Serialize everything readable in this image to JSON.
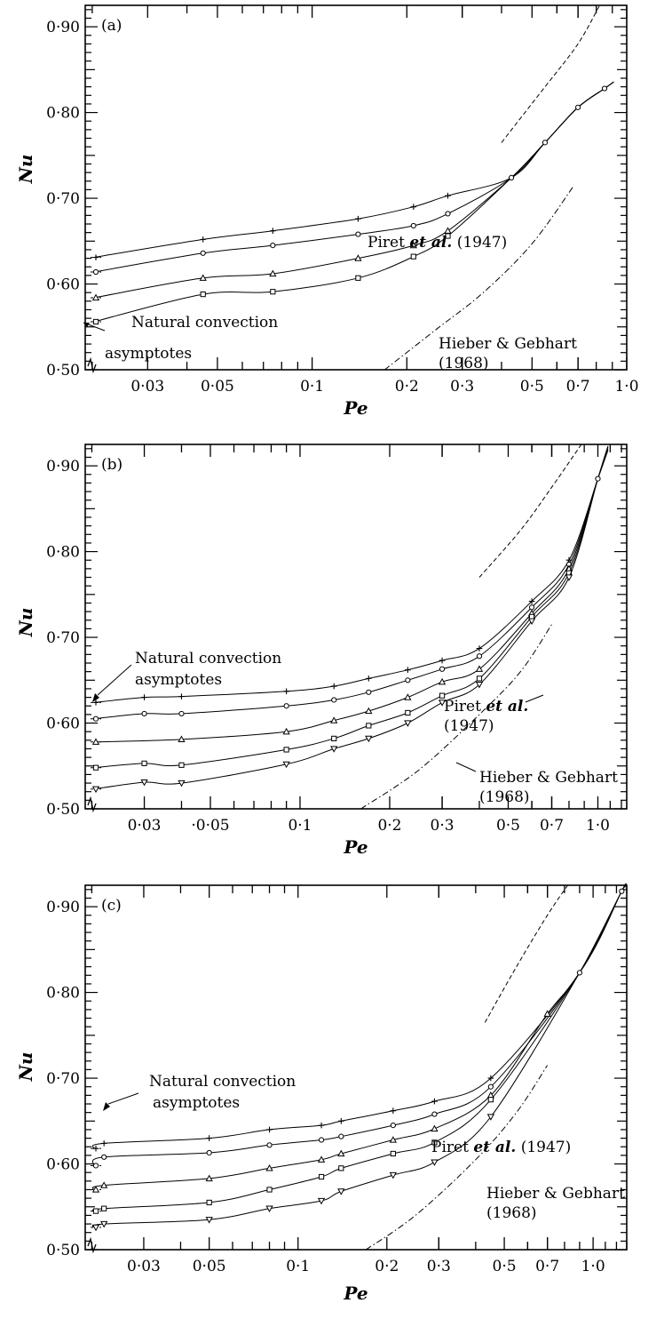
{
  "chart_data": [
    {
      "type": "line",
      "panel_label": "(a)",
      "xlabel": "Pe",
      "ylabel": "Nu",
      "x_scale": "log",
      "xlim": [
        0.019,
        1.0
      ],
      "ylim": [
        0.5,
        0.925
      ],
      "x_ticks": [
        0.03,
        0.05,
        0.1,
        0.2,
        0.3,
        0.5,
        0.7,
        1.0
      ],
      "x_tick_labels": [
        "0·03",
        "0·05",
        "0·1",
        "0·2",
        "0·3",
        "0·5",
        "0·7",
        "1·0"
      ],
      "y_ticks": [
        0.5,
        0.6,
        0.7,
        0.8,
        0.9
      ],
      "y_tick_labels": [
        "0·50",
        "0·60",
        "0·70",
        "0·80",
        "0·90"
      ],
      "asymptotes": [
        0.631,
        0.614,
        0.584,
        0.556
      ],
      "series": [
        {
          "marker": "plus",
          "x": [
            0.045,
            0.075,
            0.14,
            0.21,
            0.27
          ],
          "y": [
            0.652,
            0.662,
            0.676,
            0.69,
            0.703
          ]
        },
        {
          "marker": "circle",
          "x": [
            0.045,
            0.075,
            0.14,
            0.21,
            0.27
          ],
          "y": [
            0.636,
            0.645,
            0.658,
            0.668,
            0.682
          ]
        },
        {
          "marker": "triangle",
          "x": [
            0.045,
            0.075,
            0.14,
            0.21,
            0.27
          ],
          "y": [
            0.607,
            0.612,
            0.63,
            0.645,
            0.662
          ]
        },
        {
          "marker": "square",
          "x": [
            0.045,
            0.075,
            0.14,
            0.21,
            0.27
          ],
          "y": [
            0.588,
            0.591,
            0.607,
            0.632,
            0.656
          ]
        }
      ],
      "combined": {
        "marker": "circle",
        "x": [
          0.43,
          0.55,
          0.7,
          0.85
        ],
        "y": [
          0.724,
          0.765,
          0.806,
          0.828
        ]
      },
      "piret": {
        "x": [
          0.4,
          0.55,
          0.7,
          0.82
        ],
        "y": [
          0.765,
          0.83,
          0.88,
          0.925
        ]
      },
      "hieber": {
        "x": [
          0.17,
          0.25,
          0.35,
          0.5,
          0.68
        ],
        "y": [
          0.5,
          0.548,
          0.59,
          0.647,
          0.715
        ]
      },
      "annotations": [
        {
          "text": "Natural convection",
          "sub": "asymptotes"
        },
        {
          "text_prefix": "Piret ",
          "text_italic": "et al.",
          "text_suffix": " (1947)"
        },
        {
          "text": "Hieber & Gebhart",
          "sub": "(1968)"
        }
      ]
    },
    {
      "type": "line",
      "panel_label": "(b)",
      "xlabel": "Pe",
      "ylabel": "Nu",
      "x_scale": "log",
      "xlim": [
        0.019,
        1.25
      ],
      "ylim": [
        0.5,
        0.925
      ],
      "x_ticks": [
        0.03,
        0.05,
        0.1,
        0.2,
        0.3,
        0.5,
        0.7,
        1.0
      ],
      "x_tick_labels": [
        "0·03",
        "·0·05",
        "0·1",
        "0·2",
        "0·3",
        "0·5",
        "0·7",
        "1·0"
      ],
      "y_ticks": [
        0.5,
        0.6,
        0.7,
        0.8,
        0.9
      ],
      "y_tick_labels": [
        "0·50",
        "0·60",
        "0·70",
        "0·80",
        "0·90"
      ],
      "asymptotes": [
        0.624,
        0.605,
        0.578,
        0.548,
        0.523
      ],
      "series": [
        {
          "marker": "plus",
          "x": [
            0.03,
            0.04,
            0.09,
            0.13,
            0.17,
            0.23,
            0.3,
            0.4,
            0.6,
            0.8
          ],
          "y": [
            0.63,
            0.631,
            0.637,
            0.643,
            0.652,
            0.662,
            0.673,
            0.687,
            0.742,
            0.79
          ]
        },
        {
          "marker": "circle",
          "x": [
            0.03,
            0.04,
            0.09,
            0.13,
            0.17,
            0.23,
            0.3,
            0.4,
            0.6,
            0.8
          ],
          "y": [
            0.611,
            0.611,
            0.62,
            0.627,
            0.636,
            0.65,
            0.663,
            0.678,
            0.735,
            0.785
          ]
        },
        {
          "marker": "triangle",
          "x": [
            0.04,
            0.09,
            0.13,
            0.17,
            0.23,
            0.3,
            0.4,
            0.6,
            0.8
          ],
          "y": [
            0.581,
            0.59,
            0.603,
            0.614,
            0.63,
            0.648,
            0.663,
            0.728,
            0.78
          ]
        },
        {
          "marker": "square",
          "x": [
            0.03,
            0.04,
            0.09,
            0.13,
            0.17,
            0.23,
            0.3,
            0.4,
            0.6,
            0.8
          ],
          "y": [
            0.553,
            0.551,
            0.569,
            0.582,
            0.597,
            0.612,
            0.632,
            0.652,
            0.724,
            0.775
          ]
        },
        {
          "marker": "triangle-down",
          "x": [
            0.03,
            0.04,
            0.09,
            0.13,
            0.17,
            0.23,
            0.3,
            0.4,
            0.6,
            0.8
          ],
          "y": [
            0.531,
            0.53,
            0.552,
            0.57,
            0.582,
            0.6,
            0.624,
            0.645,
            0.719,
            0.77
          ]
        }
      ],
      "combined": {
        "marker": "circle",
        "x": [
          1.0
        ],
        "y": [
          0.885
        ]
      },
      "piret": {
        "x": [
          0.4,
          0.55,
          0.7,
          0.88
        ],
        "y": [
          0.77,
          0.825,
          0.875,
          0.925
        ]
      },
      "hieber": {
        "x": [
          0.16,
          0.25,
          0.4,
          0.55,
          0.7
        ],
        "y": [
          0.5,
          0.545,
          0.61,
          0.66,
          0.715
        ]
      },
      "annotations": [
        {
          "text": "Natural convection",
          "sub": "asymptotes"
        },
        {
          "text_prefix": "Piret ",
          "text_italic": "et al.",
          "text_suffix": "",
          "sub": "(1947)"
        },
        {
          "text": "Hieber & Gebhart",
          "sub": "(1968)"
        }
      ]
    },
    {
      "type": "line",
      "panel_label": "(c)",
      "xlabel": "Pe",
      "ylabel": "Nu",
      "x_scale": "log",
      "xlim": [
        0.019,
        1.3
      ],
      "ylim": [
        0.5,
        0.925
      ],
      "x_ticks": [
        0.03,
        0.05,
        0.1,
        0.2,
        0.3,
        0.5,
        0.7,
        1.0
      ],
      "x_tick_labels": [
        "0·03",
        "0·05",
        "0·1",
        "0·2",
        "0·3",
        "0·5",
        "0·7",
        "1·0"
      ],
      "y_ticks": [
        0.5,
        0.6,
        0.7,
        0.8,
        0.9
      ],
      "y_tick_labels": [
        "0·50",
        "0·60",
        "0·70",
        "0·80",
        "0·90"
      ],
      "asymptotes": [
        0.618,
        0.598,
        0.57,
        0.545,
        0.526
      ],
      "series": [
        {
          "marker": "plus",
          "x": [
            0.022,
            0.05,
            0.08,
            0.12,
            0.14,
            0.21,
            0.29,
            0.45
          ],
          "y": [
            0.624,
            0.63,
            0.64,
            0.645,
            0.65,
            0.662,
            0.673,
            0.7
          ]
        },
        {
          "marker": "circle",
          "x": [
            0.022,
            0.05,
            0.08,
            0.12,
            0.14,
            0.21,
            0.29,
            0.45
          ],
          "y": [
            0.608,
            0.613,
            0.622,
            0.628,
            0.632,
            0.645,
            0.658,
            0.69
          ]
        },
        {
          "marker": "triangle",
          "x": [
            0.022,
            0.05,
            0.08,
            0.12,
            0.14,
            0.21,
            0.29,
            0.45,
            0.7
          ],
          "y": [
            0.575,
            0.583,
            0.595,
            0.605,
            0.612,
            0.628,
            0.641,
            0.68,
            0.775
          ]
        },
        {
          "marker": "square",
          "x": [
            0.022,
            0.05,
            0.08,
            0.12,
            0.14,
            0.21,
            0.29,
            0.45
          ],
          "y": [
            0.548,
            0.555,
            0.57,
            0.585,
            0.595,
            0.612,
            0.625,
            0.675
          ]
        },
        {
          "marker": "triangle-down",
          "x": [
            0.022,
            0.05,
            0.08,
            0.12,
            0.14,
            0.21,
            0.29,
            0.45
          ],
          "y": [
            0.53,
            0.535,
            0.548,
            0.557,
            0.568,
            0.587,
            0.602,
            0.655
          ]
        }
      ],
      "combined": {
        "marker": "circle",
        "x": [
          0.9,
          1.25
        ],
        "y": [
          0.823,
          0.918
        ]
      },
      "piret": {
        "x": [
          0.43,
          0.55,
          0.7,
          0.82
        ],
        "y": [
          0.765,
          0.83,
          0.89,
          0.925
        ]
      },
      "hieber": {
        "x": [
          0.17,
          0.25,
          0.4,
          0.55,
          0.7
        ],
        "y": [
          0.5,
          0.54,
          0.605,
          0.66,
          0.715
        ]
      },
      "annotations": [
        {
          "text": "Natural convection",
          "sub": "asymptotes"
        },
        {
          "text_prefix": "Piret ",
          "text_italic": "et al.",
          "text_suffix": " (1947)"
        },
        {
          "text": "Hieber & Gebhart",
          "sub": "(1968)"
        }
      ]
    }
  ]
}
